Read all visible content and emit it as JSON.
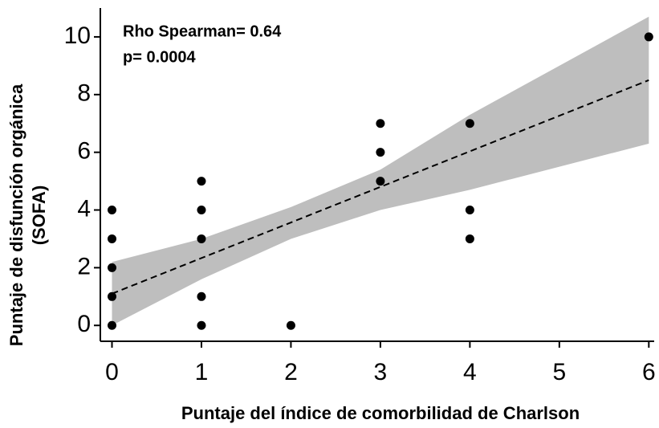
{
  "chart_data": {
    "type": "scatter",
    "annotations": [
      "Rho Spearman= 0.64",
      "p= 0.0004"
    ],
    "xlabel": "Puntaje del índice de comorbilidad de Charlson",
    "ylabel": [
      "Puntaje de disfunción orgánica",
      "(SOFA)"
    ],
    "x": [
      0,
      0,
      0,
      0,
      0,
      1,
      1,
      1,
      1,
      1,
      2,
      3,
      3,
      3,
      4,
      4,
      4,
      6
    ],
    "y": [
      0,
      1,
      2,
      3,
      4,
      0,
      1,
      3,
      4,
      5,
      0,
      5,
      6,
      7,
      3,
      4,
      7,
      10
    ],
    "color": "#000000",
    "fit": {
      "x": [
        0,
        6
      ],
      "y": [
        1.1,
        8.5
      ],
      "color": "#000000"
    },
    "band": {
      "x": [
        0,
        1,
        2,
        3,
        4,
        5,
        6
      ],
      "upper": [
        2.2,
        3.0,
        4.1,
        5.4,
        7.3,
        9.0,
        10.7
      ],
      "lower": [
        0.0,
        1.6,
        3.0,
        4.0,
        4.7,
        5.5,
        6.3
      ],
      "color": "#bebebe"
    },
    "xlim": [
      -0.13,
      6.06
    ],
    "ylim": [
      -0.55,
      11
    ],
    "xticks": [
      0,
      1,
      2,
      3,
      4,
      5,
      6
    ],
    "yticks": [
      0,
      2,
      4,
      6,
      8,
      10
    ],
    "grid": false
  }
}
